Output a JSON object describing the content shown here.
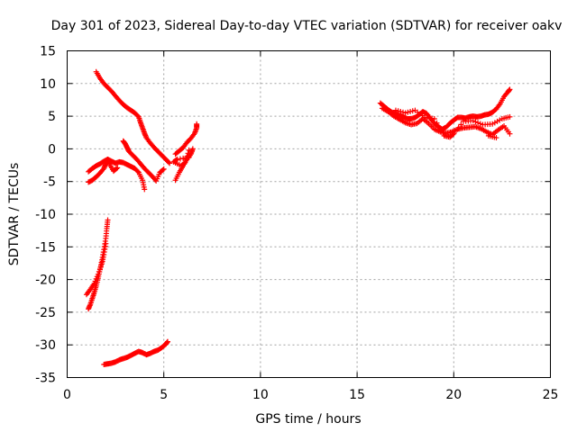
{
  "chart_data": {
    "type": "scatter",
    "title": "Day 301 of 2023, Sidereal Day-to-day VTEC variation (SDTVAR) for receiver oakv",
    "xlabel": "GPS time / hours",
    "ylabel": "SDTVAR / TECUs",
    "xlim": [
      0,
      25
    ],
    "ylim": [
      -35,
      15
    ],
    "xticks": [
      0,
      5,
      10,
      15,
      20,
      25
    ],
    "yticks": [
      -35,
      -30,
      -25,
      -20,
      -15,
      -10,
      -5,
      0,
      5,
      10,
      15
    ],
    "grid": true,
    "marker": "+",
    "color": "#ff0000",
    "series": [
      {
        "values": [
          [
            1.5,
            11.8
          ],
          [
            1.7,
            10.8
          ],
          [
            1.9,
            10.0
          ],
          [
            2.1,
            9.4
          ],
          [
            2.3,
            8.8
          ],
          [
            2.5,
            8.1
          ],
          [
            2.7,
            7.4
          ],
          [
            2.9,
            6.8
          ],
          [
            3.1,
            6.3
          ],
          [
            3.3,
            5.9
          ],
          [
            3.5,
            5.5
          ],
          [
            3.7,
            4.9
          ],
          [
            3.8,
            4.0
          ],
          [
            3.9,
            3.2
          ],
          [
            4.0,
            2.4
          ],
          [
            4.1,
            1.7
          ],
          [
            4.3,
            0.9
          ],
          [
            4.5,
            0.2
          ],
          [
            4.7,
            -0.4
          ],
          [
            4.9,
            -1.0
          ],
          [
            5.1,
            -1.6
          ],
          [
            5.3,
            -2.2
          ]
        ]
      },
      {
        "values": [
          [
            1.1,
            -3.5
          ],
          [
            1.3,
            -3.0
          ],
          [
            1.5,
            -2.6
          ],
          [
            1.7,
            -2.3
          ],
          [
            1.9,
            -1.9
          ],
          [
            2.1,
            -1.6
          ],
          [
            2.3,
            -1.9
          ],
          [
            2.5,
            -2.2
          ],
          [
            2.7,
            -2.0
          ],
          [
            2.9,
            -2.1
          ],
          [
            3.1,
            -2.4
          ],
          [
            3.3,
            -2.7
          ],
          [
            3.5,
            -3.0
          ],
          [
            3.7,
            -3.6
          ],
          [
            3.9,
            -4.8
          ],
          [
            4.0,
            -6.2
          ]
        ]
      },
      {
        "values": [
          [
            1.1,
            -5.1
          ],
          [
            1.3,
            -4.8
          ],
          [
            1.5,
            -4.3
          ],
          [
            1.7,
            -3.7
          ],
          [
            1.9,
            -3.0
          ],
          [
            2.0,
            -2.3
          ],
          [
            2.1,
            -1.7
          ],
          [
            2.2,
            -2.4
          ],
          [
            2.4,
            -3.4
          ],
          [
            2.6,
            -2.9
          ]
        ]
      },
      {
        "values": [
          [
            2.9,
            1.2
          ],
          [
            3.0,
            0.8
          ],
          [
            3.1,
            0.2
          ],
          [
            3.2,
            -0.4
          ],
          [
            3.4,
            -1.0
          ],
          [
            3.6,
            -1.6
          ],
          [
            3.8,
            -2.3
          ],
          [
            4.0,
            -3.0
          ],
          [
            4.2,
            -3.6
          ],
          [
            4.4,
            -4.2
          ],
          [
            4.6,
            -4.9
          ],
          [
            4.8,
            -3.6
          ],
          [
            5.0,
            -3.1
          ]
        ]
      },
      {
        "values": [
          [
            5.6,
            -0.8
          ],
          [
            5.8,
            -0.3
          ],
          [
            6.0,
            0.2
          ],
          [
            6.2,
            1.0
          ],
          [
            6.4,
            1.6
          ],
          [
            6.6,
            2.4
          ],
          [
            6.7,
            3.2
          ],
          [
            6.7,
            3.8
          ],
          [
            5.6,
            -4.8
          ],
          [
            5.8,
            -3.6
          ],
          [
            6.0,
            -2.6
          ],
          [
            6.2,
            -1.6
          ],
          [
            6.4,
            -0.8
          ],
          [
            6.5,
            0.0
          ],
          [
            6.3,
            -1.3
          ],
          [
            5.7,
            -1.6
          ],
          [
            5.5,
            -2.0
          ],
          [
            5.9,
            -2.6
          ],
          [
            6.1,
            -2.1
          ],
          [
            6.3,
            -0.2
          ]
        ]
      },
      {
        "values": [
          [
            1.1,
            -24.5
          ],
          [
            1.2,
            -23.8
          ],
          [
            1.3,
            -22.9
          ],
          [
            1.4,
            -22.0
          ],
          [
            1.5,
            -21.0
          ],
          [
            1.6,
            -19.8
          ],
          [
            1.7,
            -18.5
          ],
          [
            1.8,
            -17.0
          ],
          [
            1.9,
            -15.4
          ],
          [
            2.0,
            -13.7
          ],
          [
            2.05,
            -12.2
          ],
          [
            2.1,
            -10.9
          ],
          [
            1.0,
            -22.3
          ],
          [
            1.2,
            -21.5
          ],
          [
            1.4,
            -20.6
          ],
          [
            1.6,
            -19.2
          ],
          [
            1.8,
            -17.6
          ],
          [
            1.9,
            -16.2
          ],
          [
            2.0,
            -14.5
          ]
        ]
      },
      {
        "values": [
          [
            1.9,
            -33.0
          ],
          [
            2.1,
            -32.9
          ],
          [
            2.3,
            -32.8
          ],
          [
            2.5,
            -32.6
          ],
          [
            2.7,
            -32.3
          ],
          [
            2.9,
            -32.1
          ],
          [
            3.1,
            -31.9
          ],
          [
            3.3,
            -31.6
          ],
          [
            3.5,
            -31.3
          ],
          [
            3.7,
            -31.0
          ],
          [
            3.9,
            -31.2
          ],
          [
            4.1,
            -31.5
          ],
          [
            4.3,
            -31.3
          ],
          [
            4.5,
            -31.0
          ],
          [
            4.7,
            -30.8
          ],
          [
            4.9,
            -30.4
          ],
          [
            5.1,
            -29.9
          ],
          [
            5.2,
            -29.5
          ]
        ]
      },
      {
        "values": [
          [
            16.2,
            7.0
          ],
          [
            16.4,
            6.5
          ],
          [
            16.6,
            6.0
          ],
          [
            16.8,
            5.6
          ],
          [
            17.0,
            5.4
          ],
          [
            17.2,
            5.1
          ],
          [
            17.4,
            4.9
          ],
          [
            17.6,
            4.6
          ],
          [
            17.8,
            4.6
          ],
          [
            18.0,
            4.8
          ],
          [
            18.2,
            5.2
          ],
          [
            18.4,
            5.7
          ],
          [
            18.6,
            5.4
          ],
          [
            18.8,
            4.6
          ],
          [
            19.0,
            3.9
          ],
          [
            19.2,
            3.4
          ],
          [
            19.4,
            3.0
          ],
          [
            19.6,
            3.3
          ],
          [
            19.8,
            3.9
          ],
          [
            20.0,
            4.4
          ],
          [
            20.2,
            4.8
          ],
          [
            20.4,
            4.8
          ],
          [
            20.6,
            4.7
          ],
          [
            20.8,
            4.9
          ],
          [
            21.0,
            5.0
          ],
          [
            21.2,
            4.9
          ],
          [
            21.4,
            5.0
          ],
          [
            21.6,
            5.2
          ],
          [
            21.8,
            5.3
          ],
          [
            22.0,
            5.6
          ],
          [
            22.2,
            6.1
          ],
          [
            22.4,
            6.9
          ],
          [
            22.6,
            8.0
          ],
          [
            22.8,
            8.7
          ],
          [
            22.9,
            9.1
          ]
        ]
      },
      {
        "values": [
          [
            16.3,
            6.2
          ],
          [
            16.6,
            5.7
          ],
          [
            16.9,
            5.0
          ],
          [
            17.2,
            4.5
          ],
          [
            17.5,
            4.0
          ],
          [
            17.8,
            3.7
          ],
          [
            18.1,
            3.9
          ],
          [
            18.4,
            4.6
          ],
          [
            18.7,
            3.9
          ],
          [
            19.0,
            3.0
          ],
          [
            19.3,
            2.6
          ],
          [
            19.6,
            2.4
          ],
          [
            19.9,
            2.6
          ],
          [
            20.2,
            3.0
          ],
          [
            20.5,
            3.2
          ],
          [
            20.8,
            3.3
          ],
          [
            21.1,
            3.4
          ],
          [
            21.4,
            3.1
          ],
          [
            21.7,
            2.6
          ],
          [
            22.0,
            2.2
          ],
          [
            22.3,
            2.9
          ],
          [
            22.6,
            3.5
          ],
          [
            22.9,
            2.3
          ]
        ]
      },
      {
        "values": [
          [
            17.0,
            5.9
          ],
          [
            17.5,
            5.5
          ],
          [
            18.0,
            5.9
          ],
          [
            18.5,
            4.8
          ],
          [
            19.0,
            4.6
          ],
          [
            19.5,
            2.0
          ],
          [
            19.8,
            1.8
          ],
          [
            20.0,
            2.3
          ],
          [
            20.5,
            4.2
          ],
          [
            21.0,
            4.3
          ],
          [
            21.5,
            3.7
          ],
          [
            22.0,
            3.8
          ],
          [
            22.5,
            4.6
          ],
          [
            22.9,
            4.9
          ],
          [
            21.8,
            2.0
          ],
          [
            22.2,
            1.7
          ]
        ]
      }
    ]
  }
}
